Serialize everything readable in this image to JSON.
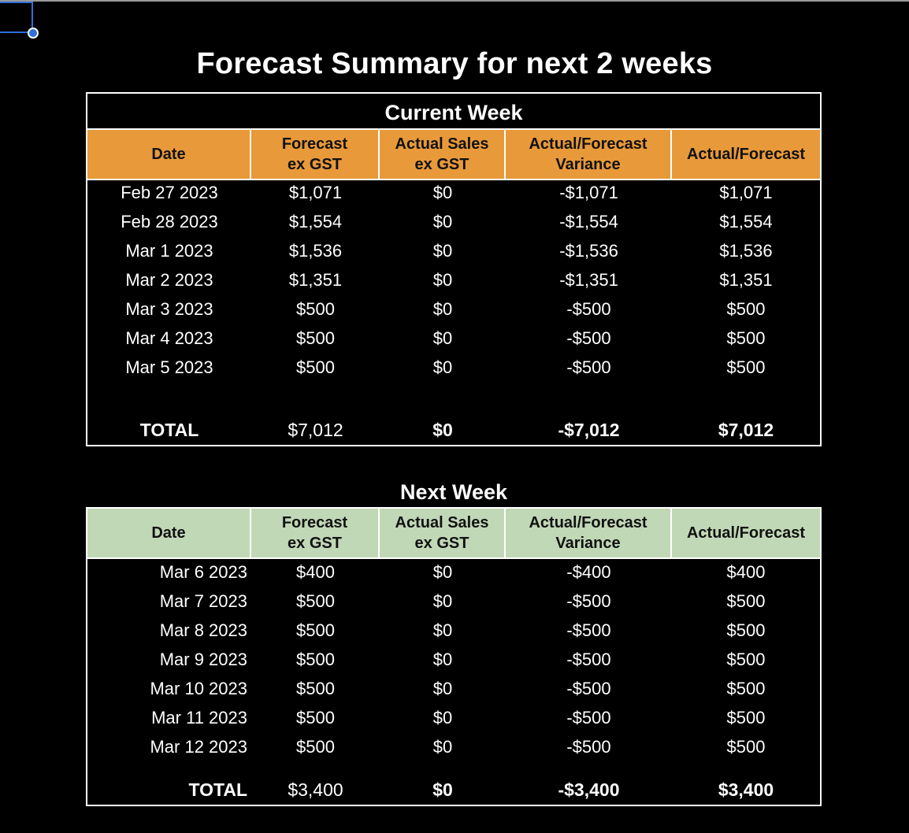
{
  "title": "Forecast Summary for next 2 weeks",
  "current_week": {
    "title": "Current Week",
    "header_color": "#e8993a",
    "headers": [
      "Date",
      "Forecast\nex GST",
      "Actual Sales\nex GST",
      "Actual/Forecast\nVariance",
      "Actual/Forecast"
    ],
    "rows": [
      [
        "Feb 27 2023",
        "$1,071",
        "$0",
        "-$1,071",
        "$1,071"
      ],
      [
        "Feb 28 2023",
        "$1,554",
        "$0",
        "-$1,554",
        "$1,554"
      ],
      [
        "Mar 1 2023",
        "$1,536",
        "$0",
        "-$1,536",
        "$1,536"
      ],
      [
        "Mar 2 2023",
        "$1,351",
        "$0",
        "-$1,351",
        "$1,351"
      ],
      [
        "Mar 3 2023",
        "$500",
        "$0",
        "-$500",
        "$500"
      ],
      [
        "Mar 4 2023",
        "$500",
        "$0",
        "-$500",
        "$500"
      ],
      [
        "Mar 5 2023",
        "$500",
        "$0",
        "-$500",
        "$500"
      ]
    ],
    "total": [
      "TOTAL",
      "$7,012",
      "$0",
      "-$7,012",
      "$7,012"
    ]
  },
  "next_week": {
    "title": "Next Week",
    "header_color": "#c1d8b6",
    "headers": [
      "Date",
      "Forecast\nex GST",
      "Actual Sales\nex GST",
      "Actual/Forecast\nVariance",
      "Actual/Forecast"
    ],
    "rows": [
      [
        "Mar 6 2023",
        "$400",
        "$0",
        "-$400",
        "$400"
      ],
      [
        "Mar 7 2023",
        "$500",
        "$0",
        "-$500",
        "$500"
      ],
      [
        "Mar 8 2023",
        "$500",
        "$0",
        "-$500",
        "$500"
      ],
      [
        "Mar 9 2023",
        "$500",
        "$0",
        "-$500",
        "$500"
      ],
      [
        "Mar 10 2023",
        "$500",
        "$0",
        "-$500",
        "$500"
      ],
      [
        "Mar 11 2023",
        "$500",
        "$0",
        "-$500",
        "$500"
      ],
      [
        "Mar 12 2023",
        "$500",
        "$0",
        "-$500",
        "$500"
      ]
    ],
    "total": [
      "TOTAL",
      "$3,400",
      "$0",
      "-$3,400",
      "$3,400"
    ]
  }
}
